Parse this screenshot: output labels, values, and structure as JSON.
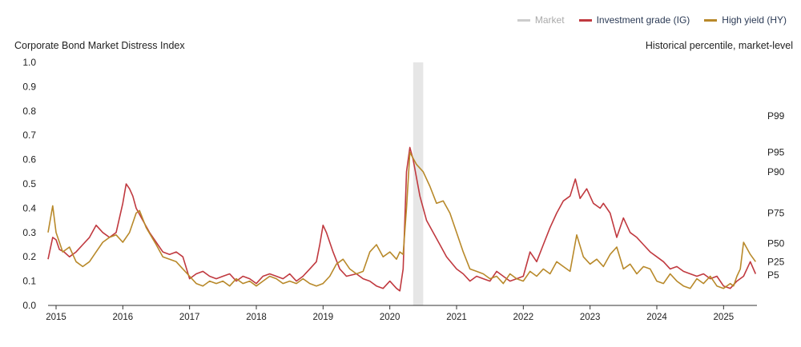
{
  "legend": {
    "market": "Market",
    "ig": "Investment grade (IG)",
    "hy": "High yield (HY)"
  },
  "colors": {
    "market": "#cccccc",
    "ig": "#c0393f",
    "hy": "#b8892a",
    "shade": "#e6e6e6"
  },
  "chart_data": {
    "type": "line",
    "title": "Corporate Bond Market Distress Index",
    "right_axis_title": "Historical percentile, market-level",
    "ylim": [
      0,
      1
    ],
    "y_ticks": [
      "0.0",
      "0.1",
      "0.2",
      "0.3",
      "0.4",
      "0.5",
      "0.6",
      "0.7",
      "0.8",
      "0.9",
      "1.0"
    ],
    "x_ticks": [
      "2015",
      "2016",
      "2017",
      "2018",
      "2019",
      "2020",
      "2021",
      "2022",
      "2023",
      "2024",
      "2025"
    ],
    "xlim": [
      2014.88,
      2025.5
    ],
    "grid": false,
    "legend_placement": "top-right",
    "shaded_period": [
      2020.35,
      2020.5
    ],
    "percentile_labels": [
      {
        "label": "P99",
        "value": 0.78
      },
      {
        "label": "P95",
        "value": 0.63
      },
      {
        "label": "P90",
        "value": 0.55
      },
      {
        "label": "P75",
        "value": 0.38
      },
      {
        "label": "P50",
        "value": 0.255
      },
      {
        "label": "P25",
        "value": 0.18
      },
      {
        "label": "P5",
        "value": 0.125
      }
    ],
    "series": [
      {
        "name": "Investment grade (IG)",
        "x": [
          2014.88,
          2014.95,
          2015.0,
          2015.05,
          2015.12,
          2015.2,
          2015.3,
          2015.4,
          2015.5,
          2015.6,
          2015.7,
          2015.8,
          2015.9,
          2016.0,
          2016.05,
          2016.1,
          2016.15,
          2016.2,
          2016.3,
          2016.4,
          2016.5,
          2016.6,
          2016.7,
          2016.8,
          2016.9,
          2017.0,
          2017.1,
          2017.2,
          2017.3,
          2017.4,
          2017.5,
          2017.6,
          2017.7,
          2017.8,
          2017.9,
          2018.0,
          2018.1,
          2018.2,
          2018.3,
          2018.4,
          2018.5,
          2018.6,
          2018.7,
          2018.8,
          2018.9,
          2018.95,
          2019.0,
          2019.05,
          2019.15,
          2019.25,
          2019.35,
          2019.5,
          2019.6,
          2019.7,
          2019.8,
          2019.9,
          2020.0,
          2020.1,
          2020.15,
          2020.2,
          2020.25,
          2020.3,
          2020.35,
          2020.45,
          2020.55,
          2020.65,
          2020.75,
          2020.85,
          2021.0,
          2021.1,
          2021.2,
          2021.3,
          2021.4,
          2021.5,
          2021.6,
          2021.7,
          2021.8,
          2021.9,
          2022.0,
          2022.1,
          2022.2,
          2022.3,
          2022.4,
          2022.5,
          2022.6,
          2022.7,
          2022.78,
          2022.85,
          2022.95,
          2023.05,
          2023.15,
          2023.2,
          2023.3,
          2023.4,
          2023.5,
          2023.6,
          2023.7,
          2023.8,
          2023.9,
          2024.0,
          2024.1,
          2024.2,
          2024.3,
          2024.4,
          2024.5,
          2024.6,
          2024.7,
          2024.8,
          2024.9,
          2025.0,
          2025.1,
          2025.2,
          2025.3,
          2025.4,
          2025.48
        ],
        "values": [
          0.19,
          0.28,
          0.27,
          0.23,
          0.22,
          0.2,
          0.22,
          0.25,
          0.28,
          0.33,
          0.3,
          0.28,
          0.3,
          0.42,
          0.5,
          0.48,
          0.45,
          0.4,
          0.35,
          0.3,
          0.26,
          0.22,
          0.21,
          0.22,
          0.2,
          0.11,
          0.13,
          0.14,
          0.12,
          0.11,
          0.12,
          0.13,
          0.1,
          0.12,
          0.11,
          0.09,
          0.12,
          0.13,
          0.12,
          0.11,
          0.13,
          0.1,
          0.12,
          0.15,
          0.18,
          0.25,
          0.33,
          0.3,
          0.22,
          0.15,
          0.12,
          0.13,
          0.11,
          0.1,
          0.08,
          0.07,
          0.1,
          0.07,
          0.06,
          0.15,
          0.55,
          0.65,
          0.6,
          0.45,
          0.35,
          0.3,
          0.25,
          0.2,
          0.15,
          0.13,
          0.1,
          0.12,
          0.11,
          0.1,
          0.14,
          0.12,
          0.1,
          0.11,
          0.12,
          0.22,
          0.18,
          0.25,
          0.32,
          0.38,
          0.43,
          0.45,
          0.52,
          0.44,
          0.48,
          0.42,
          0.4,
          0.42,
          0.38,
          0.28,
          0.36,
          0.3,
          0.28,
          0.25,
          0.22,
          0.2,
          0.18,
          0.15,
          0.16,
          0.14,
          0.13,
          0.12,
          0.13,
          0.11,
          0.12,
          0.08,
          0.07,
          0.1,
          0.12,
          0.18,
          0.13
        ]
      },
      {
        "name": "High yield (HY)",
        "x": [
          2014.88,
          2014.95,
          2015.0,
          2015.1,
          2015.2,
          2015.3,
          2015.4,
          2015.5,
          2015.6,
          2015.7,
          2015.8,
          2015.9,
          2016.0,
          2016.1,
          2016.2,
          2016.25,
          2016.35,
          2016.5,
          2016.6,
          2016.7,
          2016.8,
          2016.9,
          2017.0,
          2017.1,
          2017.2,
          2017.3,
          2017.4,
          2017.5,
          2017.6,
          2017.7,
          2017.8,
          2017.9,
          2018.0,
          2018.1,
          2018.2,
          2018.3,
          2018.4,
          2018.5,
          2018.6,
          2018.7,
          2018.8,
          2018.9,
          2019.0,
          2019.1,
          2019.2,
          2019.3,
          2019.4,
          2019.5,
          2019.6,
          2019.7,
          2019.8,
          2019.9,
          2020.0,
          2020.1,
          2020.15,
          2020.2,
          2020.25,
          2020.3,
          2020.4,
          2020.5,
          2020.6,
          2020.7,
          2020.8,
          2020.9,
          2021.0,
          2021.1,
          2021.2,
          2021.3,
          2021.4,
          2021.5,
          2021.6,
          2021.7,
          2021.8,
          2021.9,
          2022.0,
          2022.1,
          2022.2,
          2022.3,
          2022.4,
          2022.5,
          2022.6,
          2022.7,
          2022.8,
          2022.9,
          2023.0,
          2023.1,
          2023.2,
          2023.3,
          2023.4,
          2023.5,
          2023.6,
          2023.7,
          2023.8,
          2023.9,
          2024.0,
          2024.1,
          2024.2,
          2024.3,
          2024.4,
          2024.5,
          2024.6,
          2024.7,
          2024.8,
          2024.9,
          2025.0,
          2025.1,
          2025.15,
          2025.2,
          2025.25,
          2025.3,
          2025.4,
          2025.48
        ],
        "values": [
          0.3,
          0.41,
          0.3,
          0.22,
          0.24,
          0.18,
          0.16,
          0.18,
          0.22,
          0.26,
          0.28,
          0.29,
          0.26,
          0.3,
          0.38,
          0.39,
          0.32,
          0.25,
          0.2,
          0.19,
          0.18,
          0.15,
          0.12,
          0.09,
          0.08,
          0.1,
          0.09,
          0.1,
          0.08,
          0.11,
          0.09,
          0.1,
          0.08,
          0.1,
          0.12,
          0.11,
          0.09,
          0.1,
          0.09,
          0.11,
          0.09,
          0.08,
          0.09,
          0.12,
          0.17,
          0.19,
          0.15,
          0.13,
          0.14,
          0.22,
          0.25,
          0.2,
          0.22,
          0.19,
          0.22,
          0.21,
          0.4,
          0.63,
          0.58,
          0.55,
          0.49,
          0.42,
          0.43,
          0.38,
          0.3,
          0.22,
          0.15,
          0.14,
          0.13,
          0.11,
          0.12,
          0.09,
          0.13,
          0.11,
          0.1,
          0.14,
          0.12,
          0.15,
          0.13,
          0.18,
          0.16,
          0.14,
          0.29,
          0.2,
          0.17,
          0.19,
          0.16,
          0.21,
          0.24,
          0.15,
          0.17,
          0.13,
          0.16,
          0.15,
          0.1,
          0.09,
          0.13,
          0.1,
          0.08,
          0.07,
          0.11,
          0.09,
          0.12,
          0.08,
          0.07,
          0.09,
          0.08,
          0.12,
          0.15,
          0.26,
          0.21,
          0.18
        ]
      }
    ]
  }
}
